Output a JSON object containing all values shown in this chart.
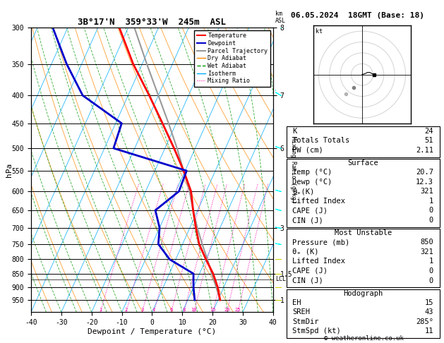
{
  "title_main": "3B°17'N  359°33'W  245m  ASL",
  "title_right": "06.05.2024  18GMT (Base: 18)",
  "xlabel": "Dewpoint / Temperature (°C)",
  "ylabel_left": "hPa",
  "pressure_levels": [
    300,
    350,
    400,
    450,
    500,
    550,
    600,
    650,
    700,
    750,
    800,
    850,
    900,
    950
  ],
  "xlim": [
    -40,
    40
  ],
  "pmin": 300,
  "pmax": 1000,
  "skew": 35.0,
  "temp_profile": {
    "pressure": [
      950,
      900,
      850,
      800,
      750,
      700,
      650,
      600,
      550,
      500,
      450,
      400,
      350,
      300
    ],
    "temp": [
      20.7,
      18.0,
      14.5,
      10.0,
      5.5,
      2.0,
      -1.5,
      -5.0,
      -10.5,
      -17.0,
      -24.5,
      -33.0,
      -43.0,
      -53.0
    ]
  },
  "dewp_profile": {
    "pressure": [
      950,
      900,
      850,
      800,
      750,
      700,
      650,
      600,
      550,
      500,
      450,
      400,
      350,
      300
    ],
    "dewp": [
      12.3,
      10.0,
      8.0,
      -2.0,
      -8.0,
      -10.0,
      -14.0,
      -9.0,
      -9.5,
      -37.0,
      -38.0,
      -55.0,
      -65.0,
      -75.0
    ]
  },
  "parcel_trajectory": {
    "pressure": [
      950,
      900,
      850,
      800,
      750,
      700,
      650,
      600,
      550,
      500,
      450,
      400,
      350,
      300
    ],
    "temp": [
      20.7,
      17.5,
      14.0,
      10.5,
      6.5,
      2.5,
      -1.5,
      -5.5,
      -10.5,
      -16.0,
      -22.5,
      -30.0,
      -38.5,
      -48.0
    ]
  },
  "temp_color": "#ff0000",
  "dewp_color": "#0000cc",
  "parcel_color": "#999999",
  "dry_adiabat_color": "#ff8800",
  "wet_adiabat_color": "#009900",
  "isotherm_color": "#00aaff",
  "mixing_ratio_color": "#ff00aa",
  "mixing_ratio_values": [
    1,
    2,
    3,
    4,
    6,
    8,
    10,
    15,
    20,
    25
  ],
  "km_ticks": {
    "pressure": [
      950,
      850,
      700,
      500,
      400,
      300
    ],
    "km": [
      1,
      1.5,
      3,
      6,
      7,
      8
    ]
  },
  "lcl_pressure": 870,
  "wind_pressure": [
    950,
    900,
    850,
    800,
    750,
    700,
    650,
    600,
    500,
    400,
    300
  ],
  "wind_speed": [
    5,
    5,
    10,
    10,
    10,
    15,
    15,
    15,
    20,
    25,
    30
  ],
  "wind_dir": [
    270,
    270,
    270,
    270,
    280,
    280,
    285,
    285,
    290,
    300,
    310
  ],
  "info_table": {
    "K": 24,
    "Totals_Totals": 51,
    "PW_cm": "2.11",
    "Surface_Temp": "20.7",
    "Surface_Dewp": "12.3",
    "Surface_theta_e": 321,
    "Surface_Lifted_Index": 1,
    "Surface_CAPE": 0,
    "Surface_CIN": 0,
    "MU_Pressure": 850,
    "MU_theta_e": 321,
    "MU_Lifted_Index": 1,
    "MU_CAPE": 0,
    "MU_CIN": 0,
    "EH": 15,
    "SREH": 43,
    "StmDir": "285°",
    "StmSpd_kt": 11
  },
  "background_color": "#ffffff"
}
